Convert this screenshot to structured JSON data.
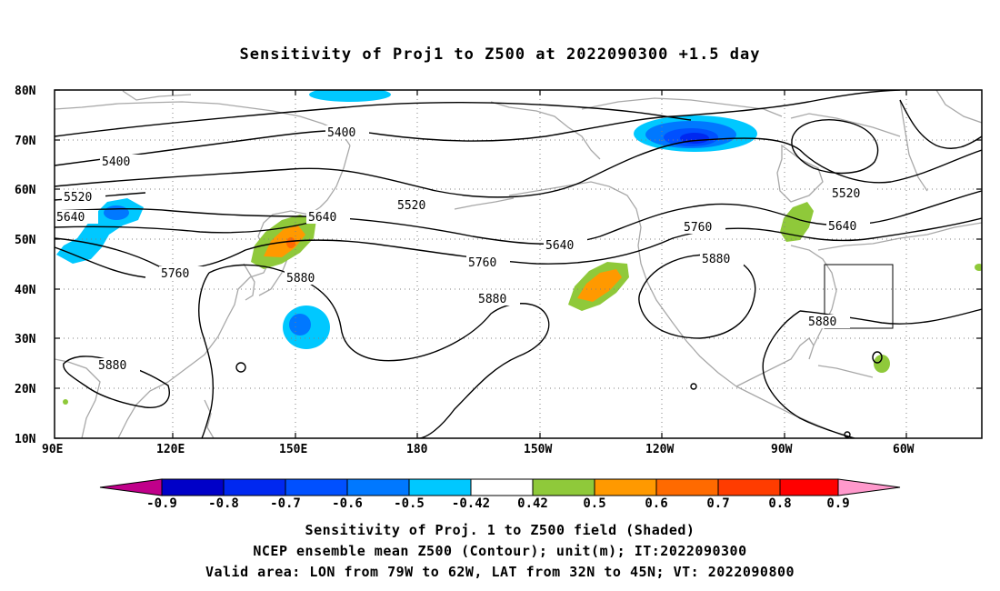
{
  "title": "Sensitivity of Proj1 to Z500 at 2022090300 +1.5 day",
  "map": {
    "lat_labels": [
      "80N",
      "70N",
      "60N",
      "50N",
      "40N",
      "30N",
      "20N",
      "10N"
    ],
    "lon_labels": [
      "90E",
      "120E",
      "150E",
      "180",
      "150W",
      "120W",
      "90W",
      "60W"
    ],
    "contour_labels": [
      {
        "text": "5400"
      },
      {
        "text": "5400"
      },
      {
        "text": "5520"
      },
      {
        "text": "5520"
      },
      {
        "text": "5520"
      },
      {
        "text": "5640"
      },
      {
        "text": "5640"
      },
      {
        "text": "5640"
      },
      {
        "text": "5640"
      },
      {
        "text": "5760"
      },
      {
        "text": "5760"
      },
      {
        "text": "5760"
      },
      {
        "text": "5880"
      },
      {
        "text": "5880"
      },
      {
        "text": "5880"
      },
      {
        "text": "5880"
      },
      {
        "text": "5880"
      }
    ],
    "valid_area": {
      "lon_from": "79W",
      "lon_to": "62W",
      "lat_from": "32N",
      "lat_to": "45N"
    }
  },
  "colorbar": {
    "labels": [
      "-0.9",
      "-0.8",
      "-0.7",
      "-0.6",
      "-0.5",
      "-0.42",
      "0.42",
      "0.5",
      "0.6",
      "0.7",
      "0.8",
      "0.9"
    ],
    "colors": [
      "#c0008a",
      "#0000c8",
      "#0028f0",
      "#0050ff",
      "#0078ff",
      "#00c8ff",
      "#ffffff",
      "#8fc93a",
      "#ff9900",
      "#ff6a00",
      "#ff3c00",
      "#ff0000",
      "#ff99cc"
    ]
  },
  "captions": {
    "line1": "Sensitivity of Proj. 1 to Z500 field (Shaded)",
    "line2": "NCEP ensemble mean Z500 (Contour); unit(m); IT:2022090300",
    "line3": "Valid area: LON from 79W to 62W, LAT from 32N to 45N; VT: 2022090800"
  }
}
